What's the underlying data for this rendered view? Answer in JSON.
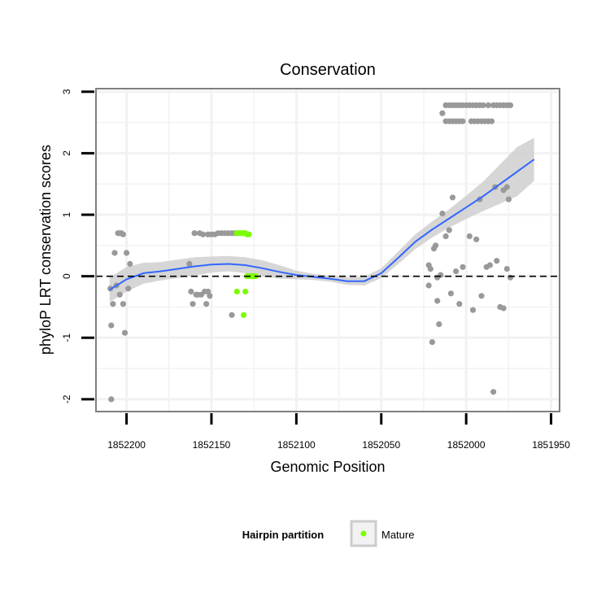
{
  "chart_data": {
    "type": "scatter",
    "title": "Conservation",
    "xlabel": "Genomic Position",
    "ylabel": "phyloP LRT conservation scores",
    "x_reversed": true,
    "xlim": [
      1852218,
      1851945
    ],
    "ylim": [
      -2.2,
      3.05
    ],
    "x_ticks": [
      1852200,
      1852150,
      1852100,
      1852050,
      1852000,
      1851950
    ],
    "y_ticks": [
      -2,
      -1,
      0,
      1,
      2,
      3
    ],
    "x_tick_labels": [
      "1852200",
      "1852150",
      "1852100",
      "1852050",
      "1852000",
      "1851950"
    ],
    "y_tick_labels": [
      "-2",
      "-1",
      "0",
      "1",
      "2",
      "3"
    ],
    "grid": true,
    "reference_line": {
      "y": 0,
      "style": "dashed",
      "color": "#000000"
    },
    "legend": {
      "title": "Hairpin partition",
      "position": "bottom",
      "entries": [
        {
          "label": "Mature",
          "color": "#7cfc00"
        }
      ]
    },
    "colors": {
      "other_points": "#999999",
      "mature_points": "#7cfc00",
      "smooth_line": "#3366ff",
      "ribbon": "#cccccc",
      "panel_border": "#7f7f7f",
      "grid": "#f2f2f2"
    },
    "series": [
      {
        "name": "Other",
        "color": "#999999",
        "points": [
          [
            1852209,
            -2.0
          ],
          [
            1852209,
            -0.8
          ],
          [
            1852209.5,
            -0.2
          ],
          [
            1852208,
            -0.45
          ],
          [
            1852207,
            0.38
          ],
          [
            1852206,
            -0.15
          ],
          [
            1852205,
            0.7
          ],
          [
            1852204,
            0.7
          ],
          [
            1852203,
            0.7
          ],
          [
            1852202,
            0.68
          ],
          [
            1852204,
            -0.3
          ],
          [
            1852202,
            -0.45
          ],
          [
            1852201,
            -0.92
          ],
          [
            1852200,
            0.38
          ],
          [
            1852199,
            -0.2
          ],
          [
            1852198,
            0.2
          ],
          [
            1852163,
            0.2
          ],
          [
            1852162,
            -0.25
          ],
          [
            1852161,
            -0.45
          ],
          [
            1852160,
            0.7
          ],
          [
            1852159,
            -0.3
          ],
          [
            1852158,
            -0.3
          ],
          [
            1852157,
            0.7
          ],
          [
            1852156,
            -0.3
          ],
          [
            1852155,
            0.68
          ],
          [
            1852154,
            -0.25
          ],
          [
            1852153,
            -0.45
          ],
          [
            1852152,
            0.68
          ],
          [
            1852152,
            -0.25
          ],
          [
            1852151,
            -0.32
          ],
          [
            1852150,
            0.68
          ],
          [
            1852148,
            0.68
          ],
          [
            1852146,
            0.7
          ],
          [
            1852144,
            0.7
          ],
          [
            1852142,
            0.7
          ],
          [
            1852140,
            0.7
          ],
          [
            1852138,
            -0.63
          ],
          [
            1852138,
            0.7
          ],
          [
            1852136,
            0.7
          ],
          [
            1852022,
            0.18
          ],
          [
            1852022,
            -0.15
          ],
          [
            1852021,
            0.12
          ],
          [
            1852020,
            -1.07
          ],
          [
            1852019,
            0.45
          ],
          [
            1852018,
            0.5
          ],
          [
            1852017,
            -0.02
          ],
          [
            1852017,
            -0.4
          ],
          [
            1852016,
            -0.78
          ],
          [
            1852015,
            0.02
          ],
          [
            1852014,
            1.02
          ],
          [
            1852012,
            0.65
          ],
          [
            1852010,
            0.75
          ],
          [
            1852009,
            -0.28
          ],
          [
            1852008,
            1.28
          ],
          [
            1852006,
            0.08
          ],
          [
            1852004,
            -0.45
          ],
          [
            1852002,
            0.15
          ],
          [
            1851998,
            0.65
          ],
          [
            1851996,
            -0.55
          ],
          [
            1851994,
            0.6
          ],
          [
            1851992,
            1.25
          ],
          [
            1851991,
            -0.32
          ],
          [
            1851988,
            0.15
          ],
          [
            1851986,
            0.18
          ],
          [
            1851984,
            -1.88
          ],
          [
            1851983,
            1.45
          ],
          [
            1851982,
            0.25
          ],
          [
            1851980,
            -0.5
          ],
          [
            1851978,
            1.4
          ],
          [
            1851978,
            -0.52
          ],
          [
            1851976,
            1.45
          ],
          [
            1851976,
            0.12
          ],
          [
            1851975,
            1.25
          ],
          [
            1851974,
            -0.02
          ],
          [
            1852014,
            2.65
          ],
          [
            1852012,
            2.78
          ],
          [
            1852010,
            2.78
          ],
          [
            1852008,
            2.78
          ],
          [
            1852006,
            2.78
          ],
          [
            1852004,
            2.78
          ],
          [
            1852002,
            2.78
          ],
          [
            1852000,
            2.78
          ],
          [
            1851998,
            2.78
          ],
          [
            1851996,
            2.78
          ],
          [
            1851994,
            2.78
          ],
          [
            1851992,
            2.78
          ],
          [
            1851990,
            2.78
          ],
          [
            1851987,
            2.78
          ],
          [
            1851984,
            2.78
          ],
          [
            1851982,
            2.78
          ],
          [
            1851980,
            2.78
          ],
          [
            1851978,
            2.78
          ],
          [
            1851976,
            2.78
          ],
          [
            1851974,
            2.78
          ],
          [
            1852012,
            2.52
          ],
          [
            1852010,
            2.52
          ],
          [
            1852008,
            2.52
          ],
          [
            1852006,
            2.52
          ],
          [
            1852004,
            2.52
          ],
          [
            1852002,
            2.52
          ],
          [
            1851997,
            2.52
          ],
          [
            1851995,
            2.52
          ],
          [
            1851993,
            2.52
          ],
          [
            1851991,
            2.52
          ],
          [
            1851989,
            2.52
          ],
          [
            1851987,
            2.52
          ],
          [
            1851985,
            2.52
          ]
        ]
      },
      {
        "name": "Mature",
        "color": "#7cfc00",
        "points": [
          [
            1852135,
            0.7
          ],
          [
            1852134,
            0.7
          ],
          [
            1852133,
            0.7
          ],
          [
            1852132,
            0.7
          ],
          [
            1852131,
            0.7
          ],
          [
            1852130,
            0.7
          ],
          [
            1852129,
            0.68
          ],
          [
            1852128,
            0.68
          ],
          [
            1852135,
            -0.25
          ],
          [
            1852130,
            -0.25
          ],
          [
            1852131,
            -0.63
          ],
          [
            1852129,
            0.0
          ],
          [
            1852128,
            0.0
          ],
          [
            1852127,
            0.0
          ],
          [
            1852126,
            0.0
          ],
          [
            1852125,
            0.0
          ],
          [
            1852124,
            0.0
          ]
        ]
      }
    ],
    "smooth": {
      "method": "loess",
      "x": [
        1852210,
        1852200,
        1852190,
        1852180,
        1852170,
        1852160,
        1852150,
        1852140,
        1852130,
        1852120,
        1852110,
        1852100,
        1852090,
        1852080,
        1852070,
        1852060,
        1852050,
        1852040,
        1852030,
        1852020,
        1852010,
        1852000,
        1851990,
        1851980,
        1851970,
        1851960
      ],
      "y": [
        -0.22,
        -0.05,
        0.05,
        0.08,
        0.12,
        0.16,
        0.19,
        0.2,
        0.18,
        0.13,
        0.07,
        0.02,
        -0.01,
        -0.04,
        -0.08,
        -0.08,
        0.05,
        0.3,
        0.56,
        0.76,
        0.94,
        1.12,
        1.3,
        1.5,
        1.7,
        1.9
      ],
      "lower": [
        -0.42,
        -0.25,
        -0.12,
        -0.07,
        -0.03,
        0.01,
        0.06,
        0.08,
        0.05,
        0.0,
        -0.04,
        -0.05,
        -0.06,
        -0.09,
        -0.14,
        -0.15,
        -0.03,
        0.2,
        0.44,
        0.63,
        0.79,
        0.93,
        1.06,
        1.18,
        1.3,
        1.55
      ],
      "upper": [
        -0.02,
        0.15,
        0.22,
        0.23,
        0.27,
        0.31,
        0.32,
        0.33,
        0.31,
        0.26,
        0.18,
        0.09,
        0.04,
        0.01,
        -0.02,
        -0.01,
        0.13,
        0.4,
        0.68,
        0.89,
        1.09,
        1.31,
        1.54,
        1.82,
        2.1,
        2.25
      ]
    }
  }
}
